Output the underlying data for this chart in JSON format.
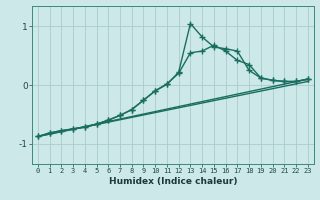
{
  "xlabel": "Humidex (Indice chaleur)",
  "bg_color": "#cce8e8",
  "grid_color": "#aacccc",
  "line_color": "#1a6e60",
  "xlim": [
    -0.5,
    23.5
  ],
  "ylim": [
    -1.35,
    1.35
  ],
  "yticks": [
    -1,
    0,
    1
  ],
  "xticks": [
    0,
    1,
    2,
    3,
    4,
    5,
    6,
    7,
    8,
    9,
    10,
    11,
    12,
    13,
    14,
    15,
    16,
    17,
    18,
    19,
    20,
    21,
    22,
    23
  ],
  "series": [
    {
      "x": [
        0,
        1,
        2,
        3,
        4,
        5,
        6,
        7,
        8,
        9,
        10,
        11,
        12,
        13,
        14,
        15,
        16,
        17,
        18,
        19,
        20,
        21,
        22,
        23
      ],
      "y": [
        -0.88,
        -0.82,
        -0.78,
        -0.75,
        -0.72,
        -0.67,
        -0.6,
        -0.52,
        -0.42,
        -0.26,
        -0.1,
        0.02,
        0.2,
        0.55,
        0.58,
        0.68,
        0.58,
        0.42,
        0.35,
        0.12,
        0.08,
        0.06,
        0.06,
        0.1
      ],
      "marker": true,
      "linewidth": 1.0
    },
    {
      "x": [
        0,
        1,
        2,
        3,
        4,
        5,
        6,
        7,
        8,
        9,
        10,
        11,
        12,
        13,
        14,
        15,
        16,
        17,
        18,
        19,
        20,
        21,
        22,
        23
      ],
      "y": [
        -0.88,
        -0.82,
        -0.78,
        -0.75,
        -0.72,
        -0.67,
        -0.6,
        -0.52,
        -0.42,
        -0.26,
        -0.1,
        0.01,
        0.22,
        1.05,
        0.82,
        0.65,
        0.62,
        0.58,
        0.25,
        0.12,
        0.08,
        0.06,
        0.06,
        0.1
      ],
      "marker": true,
      "linewidth": 1.0
    },
    {
      "x": [
        0,
        23
      ],
      "y": [
        -0.88,
        0.1
      ],
      "marker": false,
      "linewidth": 1.0
    },
    {
      "x": [
        0,
        23
      ],
      "y": [
        -0.88,
        0.06
      ],
      "marker": false,
      "linewidth": 1.0
    }
  ]
}
